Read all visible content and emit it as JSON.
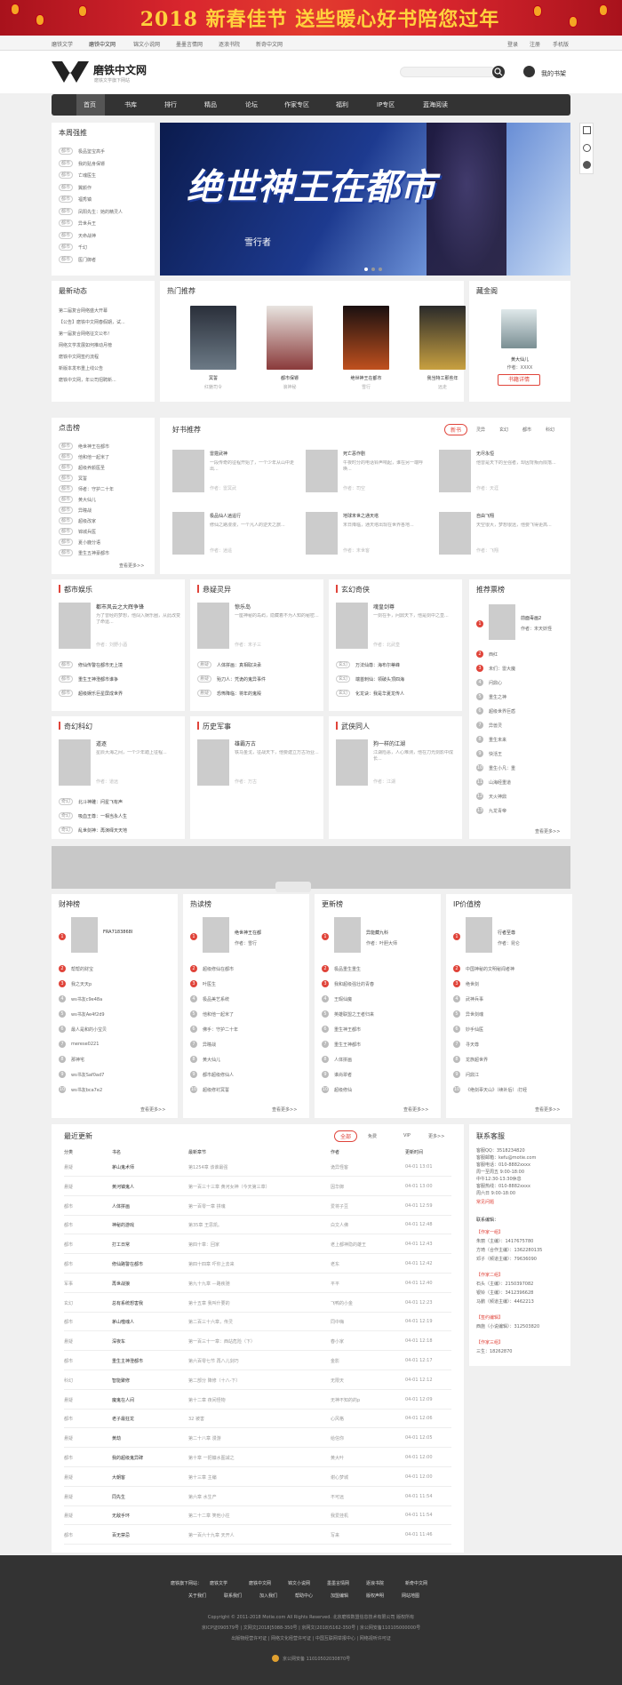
{
  "banner": {
    "text": "2018 新春佳节 送些暖心好书陪您过年"
  },
  "topbar": {
    "links": [
      "磨铁文学",
      "磨铁中文网",
      "锦文小说网",
      "墨墨言情网",
      "逐浪书院",
      "新奇中文网"
    ],
    "right": [
      "登录",
      "注册",
      "手机版"
    ]
  },
  "header": {
    "logo_text": "磨铁中文网",
    "logo_sub": "磨铁文学旗下网站",
    "search_placeholder": "",
    "mybook": "我的书架"
  },
  "nav": {
    "items": [
      "首页",
      "书库",
      "排行",
      "精品",
      "论坛",
      "作家专区",
      "福利",
      "IP专区",
      "蓝海阅读"
    ]
  },
  "weekly": {
    "title": "本周强推",
    "items": [
      {
        "tag": "都市",
        "name": "极品鉴宝高手"
      },
      {
        "tag": "都市",
        "name": "我的贴身保镖"
      },
      {
        "tag": "都市",
        "name": "亡魂医生"
      },
      {
        "tag": "都市",
        "name": "翼颜作"
      },
      {
        "tag": "都市",
        "name": "福秀镇"
      },
      {
        "tag": "都市",
        "name": "凤阳先生：她的精灵人"
      },
      {
        "tag": "都市",
        "name": "异世兵王"
      },
      {
        "tag": "都市",
        "name": "天命战神"
      },
      {
        "tag": "都市",
        "name": "千幻"
      },
      {
        "tag": "都市",
        "name": "医门御者"
      }
    ]
  },
  "hero": {
    "title": "绝世神王在都市",
    "author": "雪行者"
  },
  "news": {
    "title": "最新动态",
    "items": [
      "第二届复合网络盛大开幕",
      "【公告】磨铁中文网春假期，试...",
      "第一届复合网络征文公布！",
      "网络文学发展如何推动月榜",
      "磨铁中文网签约流程",
      "新版本发布重上线公告",
      "磨铁中文网，年公司招聘新..."
    ]
  },
  "hot": {
    "title": "热门推荐",
    "books": [
      {
        "name": "冥誓",
        "author": "红魅司令"
      },
      {
        "name": "都市保镖",
        "author": "浪神秘"
      },
      {
        "name": "绝世神王在都市",
        "author": "雪行"
      },
      {
        "name": "我当特工那些年",
        "author": "远走"
      }
    ]
  },
  "gold": {
    "title": "藏金阁",
    "book": "黄大仙儿",
    "author": "作者：XXXX",
    "button": "书籍详情"
  },
  "clicks": {
    "title": "点击榜",
    "items": [
      {
        "tag": "都市",
        "name": "绝世神王在都市"
      },
      {
        "tag": "都市",
        "name": "他和他一起米了"
      },
      {
        "tag": "都市",
        "name": "超级养颜医圣"
      },
      {
        "tag": "都市",
        "name": "冥誓"
      },
      {
        "tag": "都市",
        "name": "师者：守护二十年"
      },
      {
        "tag": "都市",
        "name": "黄大仙儿"
      },
      {
        "tag": "都市",
        "name": "异瞳战"
      },
      {
        "tag": "都市",
        "name": "超级改家"
      },
      {
        "tag": "都市",
        "name": "锦城兵医"
      },
      {
        "tag": "都市",
        "name": "夏小鹿分语"
      },
      {
        "tag": "都市",
        "name": "重生五神豪都市"
      }
    ],
    "more": "查看更多>>"
  },
  "goodbooks": {
    "title": "好书推荐",
    "tabs": [
      "新书",
      "灵异",
      "玄幻",
      "都市",
      "科幻"
    ],
    "books": [
      {
        "name": "雷霆武神",
        "desc": "一段传奇的征程开始了，一个少年从山中走出...",
        "author": "作者：雷冥武"
      },
      {
        "name": "死亡恶作剧",
        "desc": "午夜时分的电话铃声响起，谁在另一端呼唤...",
        "author": "作者：司空"
      },
      {
        "name": "无尽永恒",
        "desc": "他曾是天下的至强者，却因背叛而陨落...",
        "author": "作者：天涯"
      },
      {
        "name": "极品仙人逍遥行",
        "desc": "修仙之路漫漫，一个凡人的逆天之旅...",
        "author": "作者：逍遥"
      },
      {
        "name": "地球末世之通天塔",
        "desc": "末日降临，通天塔出现在世界各地...",
        "author": "作者：末世客"
      },
      {
        "name": "自由飞翔",
        "desc": "天空很大，梦想很远，他要飞得更高...",
        "author": "作者：飞翔"
      }
    ]
  },
  "cats": [
    {
      "title": "都市娱乐",
      "book": "都市风云之大辉争锋",
      "desc": "为了曾经的梦想，他闯入娱乐圈，从此改变了命运...",
      "author": "作者：刘野小酒",
      "list": [
        {
          "tag": "都市",
          "name": "修仙传警在都市无上境"
        },
        {
          "tag": "都市",
          "name": "重生王神澄都市谁争"
        },
        {
          "tag": "都市",
          "name": "超级娱乐巨星屏成世界"
        }
      ]
    },
    {
      "title": "悬疑灵异",
      "book": "惊乐岛",
      "desc": "一座神秘的岛屿，隐藏着不为人知的秘密...",
      "author": "作者：末子三",
      "list": [
        {
          "tag": "悬疑",
          "name": "人体拼画：真相取决承"
        },
        {
          "tag": "悬疑",
          "name": "殆刀人：凭诡的鬼异事件"
        },
        {
          "tag": "悬疑",
          "name": "恐怖降临：将年的鬼殿"
        }
      ]
    },
    {
      "title": "玄幻奇侠",
      "book": "魂皇剑尊",
      "desc": "一剑在手，问鼎天下，他是剑中之皇...",
      "author": "作者：北武皇",
      "list": [
        {
          "tag": "玄幻",
          "name": "万法仙尊：海布尔蒂峰"
        },
        {
          "tag": "玄幻",
          "name": "端首刺仙：领破头顶四海"
        },
        {
          "tag": "玄幻",
          "name": "化龙诀：我是华夏龙传人"
        }
      ]
    },
    {
      "title": "奇幻科幻",
      "book": "道逐",
      "desc": "星辰大海之间，一个少年踏上征程...",
      "author": "作者：道远",
      "list": [
        {
          "tag": "奇幻",
          "name": "北斗神雕：问星飞有声"
        },
        {
          "tag": "奇幻",
          "name": "吸血王尊：一相当永人生"
        },
        {
          "tag": "奇幻",
          "name": "乱世剑神：再演绎天天地"
        }
      ]
    },
    {
      "title": "历史军事",
      "book": "雄霸万古",
      "desc": "铁马金戈，征战天下，他要建立万古功业...",
      "author": "作者：万古",
      "list": []
    },
    {
      "title": "武侠同人",
      "book": "狗一样的江湖",
      "desc": "江湖险恶，人心难测，他在刀光剑影中成长...",
      "author": "作者：江湖",
      "list": []
    }
  ],
  "recommend": {
    "title": "推荐票榜",
    "top": {
      "name": "前面毒画2",
      "author": "作者：末天妖怪"
    },
    "items": [
      "西红",
      "未们：雷大魔",
      "问鼎心",
      "重生之神",
      "超级世界巨盾",
      "异兽灵",
      "重生未来",
      "快活王",
      "重生小凡：重",
      "山海经重道",
      "天火神鼎",
      "九龙青帝"
    ],
    "more": "查看更多>>"
  },
  "ranks": [
    {
      "title": "财神榜",
      "top": "FRA7183868I",
      "items": [
        "帮帮的财宝",
        "我之天天p",
        "ws书友c9e48a",
        "ws书友Ae4f2d9",
        "最人是和的小宝贝",
        "merese0221",
        "那神宅",
        "ws书友Saf0ad7",
        "ws书友bca7e2"
      ]
    },
    {
      "title": "热读榜",
      "top": "绝世神王在都",
      "author": "作者：雪行",
      "items": [
        "超级修仙在都市",
        "叶医生",
        "极品美艺系统",
        "他和他一起米了",
        "佛手：守护二十年",
        "异瞳战",
        "黄大仙儿",
        "都市超级修仙人",
        "超级修衬冥誓"
      ]
    },
    {
      "title": "更新榜",
      "top": "异能藏九科",
      "author": "作者：叶胆大师",
      "items": [
        "极品重生重生",
        "我和超级强壮的青春",
        "王瑕仙魔",
        "英雄联盟之王者归来",
        "重生神王都市",
        "重生王神都市",
        "人体拼画",
        "谁尚翠者",
        "超级修仙"
      ]
    },
    {
      "title": "IP价值榜",
      "top": "行者至尊",
      "author": "作者：昆仑",
      "items": [
        "中国神秘的文明秘闻者神",
        "绝世剑",
        "武神兵事",
        "异世剑魂",
        "妙手仙医",
        "寻天尊",
        "龙族超世界",
        "问鼎江",
        "《绝剑辜天山》（续补后）:打经"
      ]
    }
  ],
  "latest": {
    "title": "最近更新",
    "tabs": [
      "全部",
      "免费",
      "VIP",
      "更多>>"
    ],
    "headers": [
      "分类",
      "书名",
      "最新章节",
      "作者",
      "更新时间"
    ],
    "rows": [
      [
        "悬疑",
        "茅山鬼术师",
        "第1254章 该谁最强",
        "诡异怪客",
        "04-01 13:01"
      ],
      [
        "悬疑",
        "黄河镇鬼人",
        "第一百三十三章 黄河女神（今天第三章）",
        "因华御",
        "04-01 13:00"
      ],
      [
        "都市",
        "人体拼画",
        "第一百零一章 拼魂",
        "爱将子豆",
        "04-01 12:59"
      ],
      [
        "都市",
        "神秘的游戏",
        "第35章 王思凯。",
        "白文人佛",
        "04-01 12:48"
      ],
      [
        "都市",
        "打工日常",
        "第四十章：回家",
        "老上都神隐的雄王",
        "04-01 12:43"
      ],
      [
        "都市",
        "修仙路警在都市",
        "第四十四章 吓你上去来",
        "老东",
        "04-01 12:42"
      ],
      [
        "军事",
        "再世战狼",
        "第九十九章 —路疾驰",
        "平平",
        "04-01 12:40"
      ],
      [
        "玄幻",
        "总有系统想害我",
        "第十五章 我叫什要的",
        "飞鸭的小金",
        "04-01 12:23"
      ],
      [
        "都市",
        "茅山噬魂人",
        "第二百三十六章，传灵",
        "同中嗨",
        "04-01 12:19"
      ],
      [
        "悬疑",
        "深夜车",
        "第一百三十一章：西站危险（下）",
        "春小家",
        "04-01 12:18"
      ],
      [
        "都市",
        "重生主神澄都市",
        "第六百零七节 再八儿剑巧",
        "金影",
        "04-01 12:17"
      ],
      [
        "科幻",
        "智能聚修",
        "第二部分 降修（十八-下）",
        "无限天",
        "04-01 12:12"
      ],
      [
        "悬疑",
        "魔鬼在人间",
        "第十二章 夜间怪物",
        "无神不知的的p",
        "04-01 12:09"
      ],
      [
        "都市",
        "老子最狂龙",
        "32 被害",
        "心风格",
        "04-01 12:06"
      ],
      [
        "悬疑",
        "黄劫",
        "第二十八章 漫游",
        "给信你",
        "04-01 12:05"
      ],
      [
        "都市",
        "我的超级鬼异碑",
        "第十章 一把镰水图减之",
        "黄大叶",
        "04-01 12:00"
      ],
      [
        "悬疑",
        "大朝客",
        "第十三章 主编",
        "谢心梦城",
        "04-01 12:00"
      ],
      [
        "悬疑",
        "同先生",
        "第六章 水生产",
        "不可远",
        "04-01 11:54"
      ],
      [
        "悬疑",
        "无敌手环",
        "第二十二章 笑他小往",
        "我爱挂机",
        "04-01 11:54"
      ],
      [
        "都市",
        "百无禁忌",
        "第一百六十九章 天开人",
        "写来",
        "04-01 11:46"
      ]
    ]
  },
  "contact": {
    "title": "联系客服",
    "lines": [
      "客服QQ：3518234820",
      "客服邮箱：kefu@motie.com",
      "客服电话：010-8882xxxx",
      "周一至周五 9:00-18:00",
      "中午12:30-13:30休息",
      "客服热线：010-8882xxxx",
      "周六日 9:00-18:00"
    ],
    "link": "常见问题",
    "editors_title": "联系编辑：",
    "groups": [
      {
        "title": "【作家一组】",
        "names": [
          "朱丽（主编）：1417675780",
          "方琦（合作主编）：1362280135",
          "邓子（频道主编）：79636090"
        ]
      },
      {
        "title": "【作家二组】",
        "names": [
          "石头（主编）：2150397082",
          "银铃（主编）：3412396628",
          "马鹏（频道主编）：4462213"
        ]
      },
      {
        "title": "【签约编辑】",
        "names": [
          "西施（小说编辑）：312503820"
        ]
      },
      {
        "title": "【作家三组】",
        "names": [
          "三生：18262870"
        ]
      }
    ]
  },
  "footer": {
    "links1": [
      "磨铁旗下网站：",
      "磨铁文学",
      "磨铁中文网",
      "锦文小说网",
      "墨墨言情网",
      "逐浪书院",
      "新奇中文网"
    ],
    "links2": [
      "关于我们",
      "联系我们",
      "加入我们",
      "帮助中心",
      "加盟编辑",
      "版权声明",
      "网站地图"
    ],
    "copyright": "Copyright © 2011-2018 Motie.com All Rights Reserved. 北京磨铁数盟信息技术有限公司 版权所有",
    "icp": "京ICP证090579号 | 文网文[2018]5088-350号 | 京网文(2018)5162-350号 | 京公网安备110105000000号",
    "lic": "出版物经营许可证 | 网络文化经营许可证 | 中国互联网举报中心 | 网络视听许可证",
    "police": "京公网安备 11010502030870号"
  }
}
